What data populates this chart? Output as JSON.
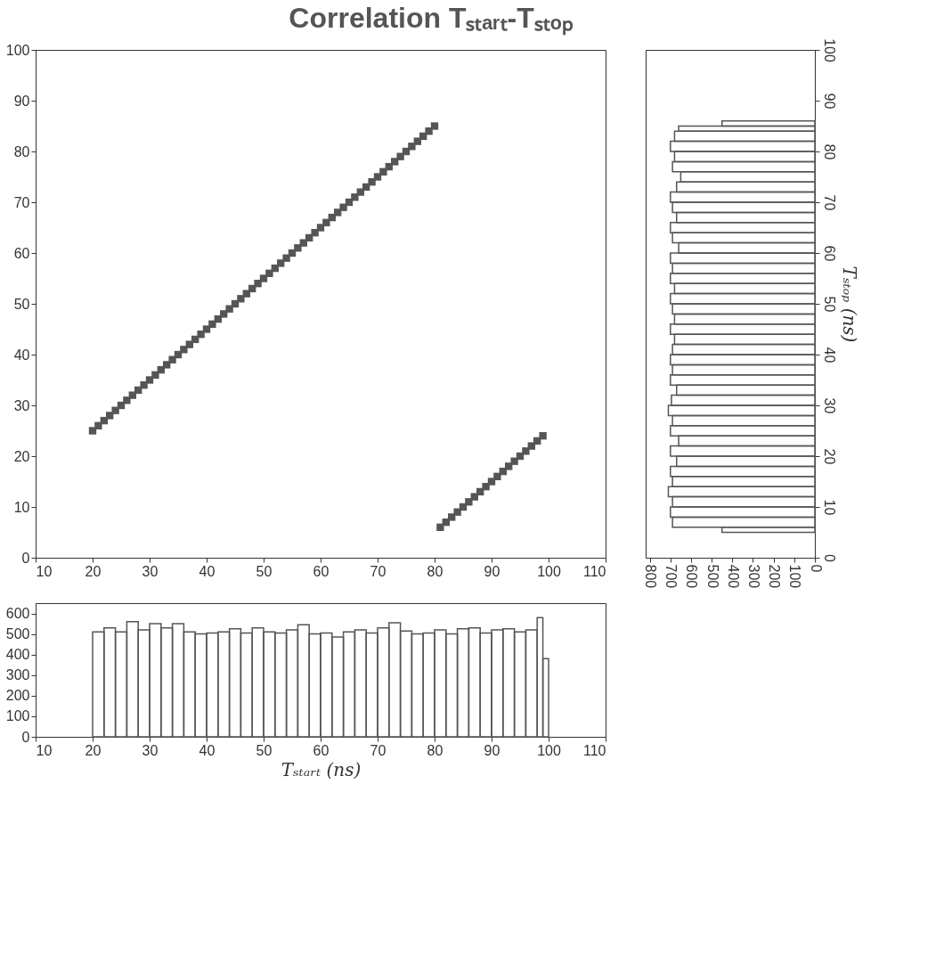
{
  "chart_data": [
    {
      "type": "scatter",
      "title": "Correlation Tₛₜₐᵣₜ-Tₛₜₒₚ",
      "marker": "square",
      "grid": false,
      "legend": false,
      "series": [
        {
          "color": "#555555",
          "x": [
            20,
            21,
            22,
            23,
            24,
            25,
            26,
            27,
            28,
            29,
            30,
            31,
            32,
            33,
            34,
            35,
            36,
            37,
            38,
            39,
            40,
            41,
            42,
            43,
            44,
            45,
            46,
            47,
            48,
            49,
            50,
            51,
            52,
            53,
            54,
            55,
            56,
            57,
            58,
            59,
            60,
            61,
            62,
            63,
            64,
            65,
            66,
            67,
            68,
            69,
            70,
            71,
            72,
            73,
            74,
            75,
            76,
            77,
            78,
            79,
            80
          ],
          "values": [
            25,
            26,
            27,
            28,
            29,
            30,
            31,
            32,
            33,
            34,
            35,
            36,
            37,
            38,
            39,
            40,
            41,
            42,
            43,
            44,
            45,
            46,
            47,
            48,
            49,
            50,
            51,
            52,
            53,
            54,
            55,
            56,
            57,
            58,
            59,
            60,
            61,
            62,
            63,
            64,
            65,
            66,
            67,
            68,
            69,
            70,
            71,
            72,
            73,
            74,
            75,
            76,
            77,
            78,
            79,
            80,
            81,
            82,
            83,
            84,
            85
          ]
        },
        {
          "color": "#555555",
          "x": [
            81,
            82,
            83,
            84,
            85,
            86,
            87,
            88,
            89,
            90,
            91,
            92,
            93,
            94,
            95,
            96,
            97,
            98,
            99
          ],
          "values": [
            6,
            7,
            8,
            9,
            10,
            11,
            12,
            13,
            14,
            15,
            16,
            17,
            18,
            19,
            20,
            21,
            22,
            23,
            24
          ]
        }
      ],
      "xlim": [
        10,
        110
      ],
      "xticks": [
        10,
        20,
        30,
        40,
        50,
        60,
        70,
        80,
        90,
        100,
        110
      ],
      "ylim": [
        0,
        100
      ],
      "yticks": [
        0,
        10,
        20,
        30,
        40,
        50,
        60,
        70,
        80,
        90,
        100
      ]
    },
    {
      "type": "histogram",
      "orientation": "horizontal",
      "grid": false,
      "color": "#555555",
      "ylabel": "Tₛₜₒₚ (ns)",
      "bins": [
        5,
        6,
        8,
        10,
        12,
        14,
        16,
        18,
        20,
        22,
        24,
        26,
        28,
        30,
        32,
        34,
        36,
        38,
        40,
        42,
        44,
        46,
        48,
        50,
        52,
        54,
        56,
        58,
        60,
        62,
        64,
        66,
        68,
        70,
        72,
        74,
        76,
        78,
        80,
        82,
        84,
        85,
        86
      ],
      "values": [
        450,
        690,
        700,
        690,
        710,
        690,
        700,
        670,
        700,
        660,
        700,
        690,
        710,
        695,
        670,
        700,
        690,
        700,
        690,
        680,
        700,
        680,
        690,
        700,
        680,
        700,
        690,
        700,
        660,
        690,
        700,
        670,
        690,
        700,
        670,
        650,
        690,
        680,
        700,
        680,
        660,
        450
      ],
      "xlim": [
        820,
        0
      ],
      "xticks": [
        0,
        100,
        200,
        300,
        400,
        500,
        600,
        700,
        800
      ],
      "ylim": [
        0,
        100
      ],
      "yticks": [
        0,
        10,
        20,
        30,
        40,
        50,
        60,
        70,
        80,
        90,
        100
      ]
    },
    {
      "type": "histogram",
      "grid": false,
      "color": "#555555",
      "xlabel": "Tₛₜₐᵣₜ (ns)",
      "bins": [
        20,
        22,
        24,
        26,
        28,
        30,
        32,
        34,
        36,
        38,
        40,
        42,
        44,
        46,
        48,
        50,
        52,
        54,
        56,
        58,
        60,
        62,
        64,
        66,
        68,
        70,
        72,
        74,
        76,
        78,
        80,
        82,
        84,
        86,
        88,
        90,
        92,
        94,
        96,
        98,
        99,
        100
      ],
      "values": [
        510,
        530,
        510,
        560,
        520,
        550,
        530,
        550,
        510,
        500,
        505,
        510,
        525,
        505,
        530,
        510,
        505,
        520,
        545,
        500,
        505,
        485,
        510,
        520,
        505,
        530,
        555,
        515,
        500,
        505,
        520,
        500,
        525,
        530,
        505,
        520,
        525,
        510,
        520,
        580,
        380
      ],
      "xlim": [
        10,
        110
      ],
      "xticks": [
        10,
        20,
        30,
        40,
        50,
        60,
        70,
        80,
        90,
        100,
        110
      ],
      "ylim": [
        0,
        650
      ],
      "yticks": [
        0,
        100,
        200,
        300,
        400,
        500,
        600
      ]
    }
  ]
}
